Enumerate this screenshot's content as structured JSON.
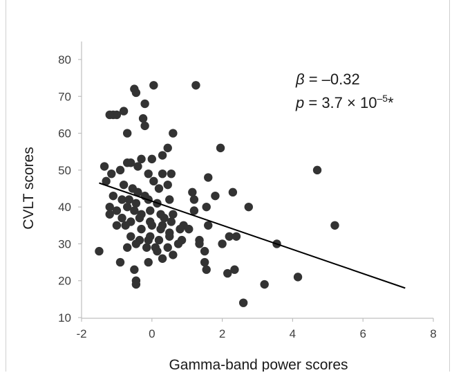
{
  "chart_data": {
    "type": "scatter",
    "title": "",
    "xlabel": "Gamma-band power scores",
    "ylabel": "CVLT scores",
    "xlim": [
      -2,
      8
    ],
    "ylim": [
      10,
      85
    ],
    "xticks": [
      -2,
      0,
      2,
      4,
      6,
      8
    ],
    "yticks": [
      10,
      20,
      30,
      40,
      50,
      60,
      70,
      80
    ],
    "grid": false,
    "legend": "none",
    "point_color": "#333333",
    "line_color": "#000000",
    "annotations": {
      "beta_symbol": "β",
      "beta_value": " = –0.32",
      "p_symbol": "p",
      "p_value": " = 3.7 × 10",
      "p_exponent": "–5",
      "p_star": "*"
    },
    "regression_line": {
      "x": [
        -1.5,
        7.2
      ],
      "y": [
        46.5,
        18
      ]
    },
    "series": [
      {
        "points": [
          [
            -0.5,
            72
          ],
          [
            -0.45,
            71
          ],
          [
            0.05,
            73
          ],
          [
            1.25,
            73
          ],
          [
            -0.2,
            68
          ],
          [
            -1.0,
            65
          ],
          [
            -1.1,
            65
          ],
          [
            -0.8,
            66
          ],
          [
            -1.2,
            65
          ],
          [
            -0.25,
            64
          ],
          [
            -0.2,
            62
          ],
          [
            -0.7,
            60
          ],
          [
            0.6,
            60
          ],
          [
            0.45,
            56
          ],
          [
            1.95,
            56
          ],
          [
            0.3,
            54
          ],
          [
            -0.3,
            53
          ],
          [
            -0.6,
            52
          ],
          [
            -0.7,
            52
          ],
          [
            0.0,
            53
          ],
          [
            -1.35,
            51
          ],
          [
            -1.15,
            49
          ],
          [
            -0.9,
            50
          ],
          [
            -0.4,
            51
          ],
          [
            -0.1,
            49
          ],
          [
            0.05,
            47
          ],
          [
            0.3,
            49
          ],
          [
            0.55,
            49
          ],
          [
            1.6,
            48
          ],
          [
            4.7,
            50
          ],
          [
            -1.3,
            47
          ],
          [
            -0.8,
            46
          ],
          [
            -0.55,
            45
          ],
          [
            -0.4,
            44
          ],
          [
            -0.2,
            43
          ],
          [
            0.2,
            45
          ],
          [
            0.45,
            46
          ],
          [
            1.15,
            44
          ],
          [
            2.3,
            44
          ],
          [
            -1.1,
            43
          ],
          [
            -0.85,
            42
          ],
          [
            -0.65,
            42
          ],
          [
            -0.45,
            41
          ],
          [
            -0.1,
            42
          ],
          [
            0.15,
            41
          ],
          [
            0.5,
            42
          ],
          [
            1.2,
            42
          ],
          [
            1.8,
            43
          ],
          [
            -1.2,
            40
          ],
          [
            -1.0,
            39
          ],
          [
            -0.7,
            40
          ],
          [
            -0.5,
            39
          ],
          [
            -0.3,
            38
          ],
          [
            -0.05,
            39
          ],
          [
            0.25,
            38
          ],
          [
            0.6,
            38
          ],
          [
            1.2,
            39
          ],
          [
            1.55,
            40
          ],
          [
            -1.2,
            38
          ],
          [
            -0.85,
            37
          ],
          [
            -0.6,
            36
          ],
          [
            -0.35,
            37
          ],
          [
            -0.05,
            36
          ],
          [
            0.3,
            35
          ],
          [
            0.55,
            36
          ],
          [
            0.9,
            35
          ],
          [
            2.75,
            40
          ],
          [
            -1.0,
            35
          ],
          [
            -0.75,
            35
          ],
          [
            -0.3,
            34
          ],
          [
            0.0,
            35
          ],
          [
            0.25,
            34
          ],
          [
            0.5,
            33
          ],
          [
            0.8,
            34
          ],
          [
            1.05,
            34
          ],
          [
            1.6,
            35
          ],
          [
            5.2,
            35
          ],
          [
            -0.6,
            32
          ],
          [
            -0.35,
            31
          ],
          [
            -0.05,
            32
          ],
          [
            0.2,
            31
          ],
          [
            0.5,
            32
          ],
          [
            0.85,
            31
          ],
          [
            1.35,
            31
          ],
          [
            2.2,
            32
          ],
          [
            2.4,
            32
          ],
          [
            -0.7,
            29
          ],
          [
            -0.45,
            30
          ],
          [
            -0.15,
            29
          ],
          [
            0.15,
            28
          ],
          [
            0.45,
            29
          ],
          [
            0.75,
            30
          ],
          [
            1.35,
            30
          ],
          [
            2.0,
            30
          ],
          [
            3.55,
            30
          ],
          [
            -1.5,
            28
          ],
          [
            -0.9,
            25
          ],
          [
            -0.1,
            25
          ],
          [
            0.3,
            26
          ],
          [
            0.6,
            27
          ],
          [
            1.5,
            28
          ],
          [
            1.5,
            25
          ],
          [
            -0.5,
            23
          ],
          [
            1.55,
            23
          ],
          [
            2.35,
            23
          ],
          [
            -0.45,
            20
          ],
          [
            -0.45,
            19
          ],
          [
            2.15,
            22
          ],
          [
            3.2,
            19
          ],
          [
            4.15,
            21
          ],
          [
            2.6,
            14
          ],
          [
            0.1,
            29
          ],
          [
            -0.1,
            31
          ],
          [
            0.35,
            37
          ]
        ]
      }
    ]
  }
}
